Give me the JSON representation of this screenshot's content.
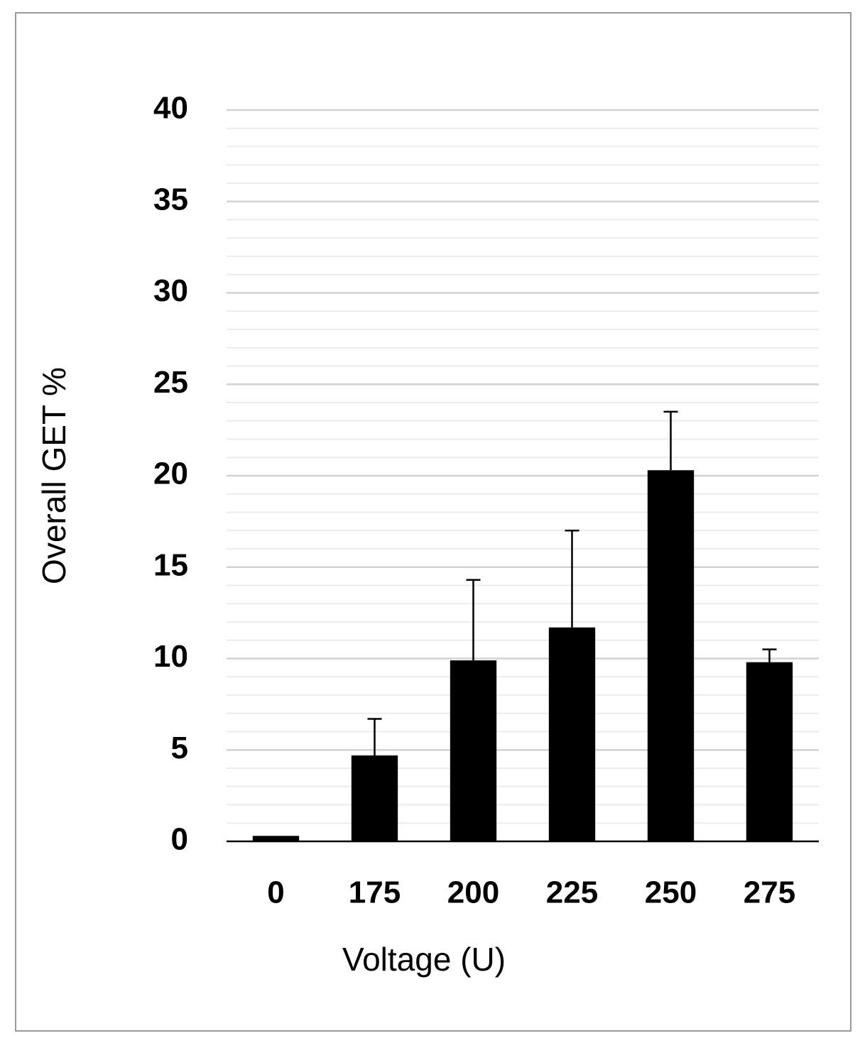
{
  "chart_data": {
    "type": "bar",
    "x_label": "Voltage (U)",
    "y_label": "Overall GET %",
    "categories": [
      "0",
      "175",
      "200",
      "225",
      "250",
      "275"
    ],
    "values": [
      0.3,
      4.7,
      9.9,
      11.7,
      20.3,
      9.8
    ],
    "errors": [
      null,
      2.0,
      4.4,
      5.3,
      3.2,
      0.7
    ],
    "color": "#000000",
    "ylim": [
      0,
      40
    ],
    "yticks": [
      0,
      5,
      10,
      15,
      20,
      25,
      30,
      35,
      40
    ],
    "grid": true,
    "minor_grid_step": 1
  }
}
